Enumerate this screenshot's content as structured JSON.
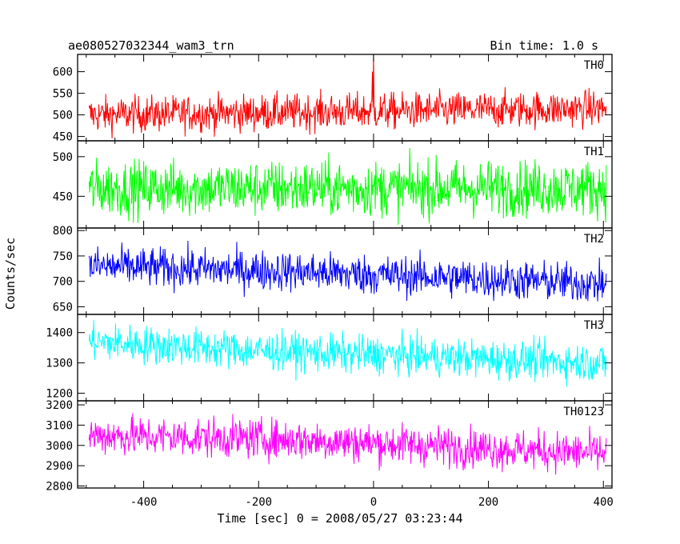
{
  "chart_data": {
    "type": "line",
    "title": "ae080527032344_wam3_trn",
    "subtitle": "Bin time: 1.0 s",
    "xlabel": "Time [sec] 0 = 2008/05/27 03:23:44",
    "ylabel": "Counts/sec",
    "xlim": [
      -515,
      415
    ],
    "x_ticks": [
      "-400",
      "-200",
      "0",
      "200",
      "400"
    ],
    "x_tick_values": [
      -400,
      -200,
      0,
      200,
      400
    ],
    "x_range": [
      -495,
      405
    ],
    "grid": false,
    "panels": [
      {
        "name": "TH0",
        "color": "#ff0000",
        "ylim": [
          440,
          640
        ],
        "y_ticks": [
          "450",
          "500",
          "550",
          "600"
        ],
        "y_tick_values": [
          450,
          500,
          550,
          600
        ],
        "series": [
          {
            "name": "TH0",
            "trend": [
              [
                -495,
                500
              ],
              [
                405,
                515
              ]
            ],
            "spread": 30,
            "spikes": [
              [
                0,
                640
              ],
              [
                -2,
                600
              ]
            ]
          }
        ]
      },
      {
        "name": "TH1",
        "color": "#00ff00",
        "ylim": [
          410,
          520
        ],
        "y_ticks": [
          "450",
          "500"
        ],
        "y_tick_values": [
          450,
          500
        ],
        "series": [
          {
            "name": "TH1",
            "trend": [
              [
                -495,
                460
              ],
              [
                405,
                460
              ]
            ],
            "spread": 25,
            "spikes": []
          }
        ]
      },
      {
        "name": "TH2",
        "color": "#0000ff",
        "ylim": [
          635,
          805
        ],
        "y_ticks": [
          "650",
          "700",
          "750",
          "800"
        ],
        "y_tick_values": [
          650,
          700,
          750,
          800
        ],
        "series": [
          {
            "name": "TH2",
            "trend": [
              [
                -495,
                730
              ],
              [
                -150,
                720
              ],
              [
                405,
                695
              ]
            ],
            "spread": 28,
            "spikes": []
          }
        ]
      },
      {
        "name": "TH3",
        "color": "#00ffff",
        "ylim": [
          1175,
          1460
        ],
        "y_ticks": [
          "1200",
          "1300",
          "1400"
        ],
        "y_tick_values": [
          1200,
          1300,
          1400
        ],
        "series": [
          {
            "name": "TH3",
            "trend": [
              [
                -495,
                1370
              ],
              [
                -200,
                1340
              ],
              [
                405,
                1300
              ]
            ],
            "spread": 45,
            "spikes": []
          }
        ]
      },
      {
        "name": "TH0123",
        "color": "#ff00ff",
        "ylim": [
          2790,
          3220
        ],
        "y_ticks": [
          "2800",
          "2900",
          "3000",
          "3100",
          "3200"
        ],
        "y_tick_values": [
          2800,
          2900,
          3000,
          3100,
          3200
        ],
        "series": [
          {
            "name": "TH0123",
            "trend": [
              [
                -495,
                3050
              ],
              [
                -150,
                3030
              ],
              [
                405,
                2960
              ]
            ],
            "spread": 70,
            "spikes": []
          }
        ]
      }
    ]
  }
}
